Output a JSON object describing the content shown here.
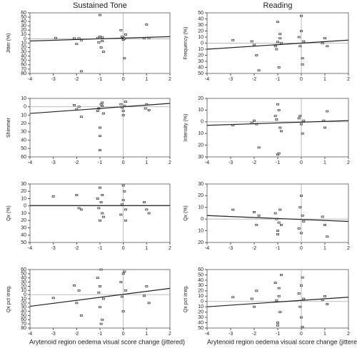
{
  "chart_data": [
    {
      "type": "scatter",
      "title": "Sustained Tone",
      "ylabel": "Jitter (%)",
      "xlim": [
        -4,
        2
      ],
      "xticks": [
        -4,
        -3,
        -2,
        -1,
        0,
        1,
        2
      ],
      "ylim": [
        -80,
        60
      ],
      "yticks": [
        60,
        50,
        40,
        30,
        20,
        10,
        0,
        {
          "value": -10,
          "label": "10"
        },
        {
          "value": -20,
          "label": "20"
        },
        {
          "value": -30,
          "label": "30"
        },
        {
          "value": -40,
          "label": "40"
        },
        {
          "value": -50,
          "label": "50"
        },
        {
          "value": -60,
          "label": "60"
        },
        {
          "value": -70,
          "label": "70"
        },
        {
          "value": -80,
          "label": "80"
        }
      ],
      "x": [
        -2.9,
        -2.1,
        -2.0,
        -1.9,
        -1.8,
        -1.1,
        -1.05,
        -1.0,
        -0.95,
        -0.9,
        -0.85,
        -1.0,
        -0.9,
        -0.1,
        0.0,
        0.05,
        0.1,
        0.0,
        0.05,
        -0.05,
        0.9,
        1.0,
        1.1,
        -1.8
      ],
      "values": [
        2,
        1,
        -12,
        1,
        -75,
        2,
        -8,
        55,
        -20,
        3,
        -30,
        5,
        -5,
        20,
        3,
        -45,
        10,
        -2,
        0,
        5,
        1,
        33,
        2,
        -3
      ],
      "fit_y": [
        -5,
        5
      ],
      "color": "#222222"
    },
    {
      "type": "scatter",
      "title": "Reading",
      "ylabel": "Frequency (%)",
      "xlim": [
        -4,
        2
      ],
      "xticks": [
        -4,
        -3,
        -2,
        -1,
        0,
        1,
        2
      ],
      "ylim": [
        -50,
        50
      ],
      "yticks": [
        50,
        40,
        30,
        20,
        10,
        0,
        {
          "value": -10,
          "label": "10"
        },
        {
          "value": -20,
          "label": "20"
        },
        {
          "value": -30,
          "label": "30"
        },
        {
          "value": -40,
          "label": "40"
        },
        {
          "value": -50,
          "label": "50"
        }
      ],
      "x": [
        -2.9,
        -2.1,
        -2.0,
        -1.8,
        -1.9,
        -1.1,
        -1.0,
        -0.95,
        -0.9,
        -1.05,
        -0.85,
        -1.0,
        -0.1,
        0.0,
        0.05,
        0.1,
        -0.05,
        0.0,
        0.9,
        1.0,
        1.1,
        -0.9,
        0.05
      ],
      "values": [
        5,
        3,
        -3,
        -45,
        -20,
        -5,
        35,
        -40,
        8,
        -10,
        0,
        2,
        10,
        45,
        -35,
        3,
        -5,
        20,
        0,
        8,
        -5,
        15,
        -25
      ],
      "fit_y": [
        -10,
        5
      ],
      "color": "#222222"
    },
    {
      "type": "scatter",
      "ylabel": "Shimmer",
      "xlim": [
        -4,
        2
      ],
      "xticks": [
        -4,
        -3,
        -2,
        -1,
        0,
        1,
        2
      ],
      "ylim": [
        -60,
        10
      ],
      "yticks": [
        10,
        0,
        {
          "value": -10,
          "label": "10"
        },
        {
          "value": -20,
          "label": "20"
        },
        {
          "value": -30,
          "label": "30"
        },
        {
          "value": -40,
          "label": "40"
        },
        {
          "value": -50,
          "label": "50"
        },
        {
          "value": -60,
          "label": "60"
        }
      ],
      "x": [
        -2.1,
        -2.0,
        -1.9,
        -1.8,
        -1.1,
        -1.0,
        -1.0,
        -0.95,
        -0.9,
        -0.85,
        -1.05,
        -0.1,
        0.0,
        0.05,
        0.1,
        -0.05,
        0.0,
        0.95,
        1.0,
        1.1,
        -1.0,
        -0.9
      ],
      "values": [
        2,
        -3,
        0,
        -12,
        -5,
        -25,
        -52,
        3,
        1,
        -8,
        -2,
        3,
        -5,
        1,
        6,
        -1,
        -10,
        -2,
        3,
        -4,
        -35,
        5
      ],
      "fit_y": [
        -8,
        4
      ],
      "color": "#222222"
    },
    {
      "type": "scatter",
      "ylabel": "Intensity (%)",
      "xlim": [
        -4,
        2
      ],
      "xticks": [
        -4,
        -3,
        -2,
        -1,
        0,
        1,
        2
      ],
      "ylim": [
        -30,
        20
      ],
      "yticks": [
        20,
        10,
        0,
        {
          "value": -10,
          "label": "10"
        },
        {
          "value": -20,
          "label": "20"
        },
        {
          "value": -30,
          "label": "30"
        }
      ],
      "x": [
        -2.9,
        -2.0,
        -1.9,
        -1.8,
        -2.1,
        -1.1,
        -1.0,
        -0.95,
        -0.9,
        -1.05,
        -0.85,
        -1.0,
        -0.1,
        0.0,
        0.05,
        0.1,
        -0.05,
        0.95,
        1.0,
        1.1,
        -0.95
      ],
      "values": [
        -3,
        1,
        -2,
        -22,
        -1,
        5,
        -28,
        10,
        -5,
        2,
        -8,
        15,
        3,
        -2,
        -10,
        1,
        5,
        1,
        -5,
        9,
        -27
      ],
      "fit_y": [
        -3,
        1
      ],
      "color": "#222222"
    },
    {
      "type": "scatter",
      "ylabel": "Qx (%)",
      "xlim": [
        -4,
        2
      ],
      "xticks": [
        -4,
        -3,
        -2,
        -1,
        0,
        1,
        2
      ],
      "ylim": [
        -50,
        30
      ],
      "yticks": [
        30,
        20,
        10,
        0,
        {
          "value": -10,
          "label": "10"
        },
        {
          "value": -20,
          "label": "20"
        },
        {
          "value": -30,
          "label": "30"
        },
        {
          "value": -40,
          "label": "40"
        },
        {
          "value": -50,
          "label": "50"
        }
      ],
      "x": [
        -3.0,
        -2.0,
        -1.9,
        -1.8,
        -1.1,
        -1.0,
        -0.95,
        -0.9,
        -1.05,
        -0.85,
        -1.0,
        -0.1,
        0.0,
        0.05,
        0.1,
        -0.05,
        0.0,
        0.9,
        1.0,
        1.1,
        -0.9,
        0.1
      ],
      "values": [
        13,
        15,
        -3,
        -5,
        10,
        -20,
        5,
        -10,
        -3,
        -15,
        25,
        -12,
        8,
        20,
        -20,
        2,
        28,
        5,
        -5,
        -10,
        15,
        -5
      ],
      "fit_y": [
        0.5,
        0.5
      ],
      "color": "#222222"
    },
    {
      "type": "scatter",
      "ylabel": "Qx (%)",
      "xlim": [
        -4,
        2
      ],
      "xticks": [
        -4,
        -3,
        -2,
        -1,
        0,
        1,
        2
      ],
      "ylim": [
        -20,
        30
      ],
      "yticks": [
        30,
        20,
        10,
        0,
        {
          "value": -10,
          "label": "10"
        },
        {
          "value": -20,
          "label": "20"
        }
      ],
      "x": [
        -2.9,
        -2.0,
        -1.9,
        -1.8,
        -1.1,
        -1.0,
        -0.95,
        -0.9,
        -1.05,
        -0.85,
        -0.1,
        0.0,
        0.05,
        0.1,
        -0.05,
        0.9,
        1.0,
        1.1,
        -1.0,
        0.0
      ],
      "values": [
        8,
        6,
        -5,
        3,
        5,
        -10,
        -3,
        8,
        0,
        -5,
        -8,
        20,
        3,
        -2,
        10,
        2,
        -5,
        -15,
        -13,
        -12
      ],
      "fit_y": [
        3,
        -2
      ],
      "color": "#222222"
    },
    {
      "type": "scatter",
      "ylabel": "Qx pct irreg.",
      "xlabel": "Arytenoid region oedema visual score change (jittered)",
      "xlim": [
        -4,
        2
      ],
      "xticks": [
        -4,
        -3,
        -2,
        -1,
        0,
        1,
        2
      ],
      "ylim": [
        -80,
        60
      ],
      "yticks": [
        60,
        50,
        40,
        30,
        20,
        10,
        0,
        {
          "value": -10,
          "label": "10"
        },
        {
          "value": -20,
          "label": "20"
        },
        {
          "value": -30,
          "label": "30"
        },
        {
          "value": -40,
          "label": "40"
        },
        {
          "value": -50,
          "label": "50"
        },
        {
          "value": -60,
          "label": "60"
        },
        {
          "value": -70,
          "label": "70"
        },
        {
          "value": -80,
          "label": "80"
        }
      ],
      "x": [
        -3.0,
        -2.1,
        -2.0,
        -1.9,
        -1.8,
        -1.1,
        -1.0,
        -0.95,
        -0.9,
        -1.05,
        -0.85,
        -1.0,
        -0.1,
        0.0,
        0.05,
        0.1,
        -0.05,
        0.0,
        0.9,
        1.0,
        1.1,
        -0.95
      ],
      "values": [
        -8,
        22,
        -20,
        10,
        -50,
        40,
        -30,
        60,
        -60,
        5,
        -10,
        20,
        30,
        -40,
        55,
        10,
        -5,
        50,
        -3,
        20,
        -20,
        -70
      ],
      "fit_y": [
        -28,
        15
      ],
      "color": "#222222"
    },
    {
      "type": "scatter",
      "ylabel": "Qx pct irreg.",
      "xlabel": "Arytenoid region oedema visual score change (jittered)",
      "xlim": [
        -4,
        2
      ],
      "xticks": [
        -4,
        -3,
        -2,
        -1,
        0,
        1,
        2
      ],
      "ylim": [
        -50,
        60
      ],
      "yticks": [
        60,
        50,
        40,
        30,
        20,
        10,
        0,
        {
          "value": -10,
          "label": "10"
        },
        {
          "value": -20,
          "label": "20"
        },
        {
          "value": -30,
          "label": "30"
        },
        {
          "value": -40,
          "label": "40"
        },
        {
          "value": -50,
          "label": "50"
        }
      ],
      "x": [
        -2.9,
        -2.0,
        -1.9,
        -2.1,
        -1.1,
        -1.0,
        -0.95,
        -0.9,
        -1.05,
        -0.85,
        -1.0,
        -0.1,
        0.0,
        0.05,
        0.1,
        -0.05,
        0.0,
        0.9,
        1.0,
        1.1,
        -0.95,
        0.05
      ],
      "values": [
        8,
        -10,
        20,
        5,
        35,
        -40,
        10,
        -20,
        2,
        50,
        -45,
        15,
        -30,
        45,
        5,
        -10,
        30,
        3,
        10,
        -5,
        25,
        -48
      ],
      "fit_y": [
        -10,
        8
      ],
      "color": "#222222"
    }
  ]
}
